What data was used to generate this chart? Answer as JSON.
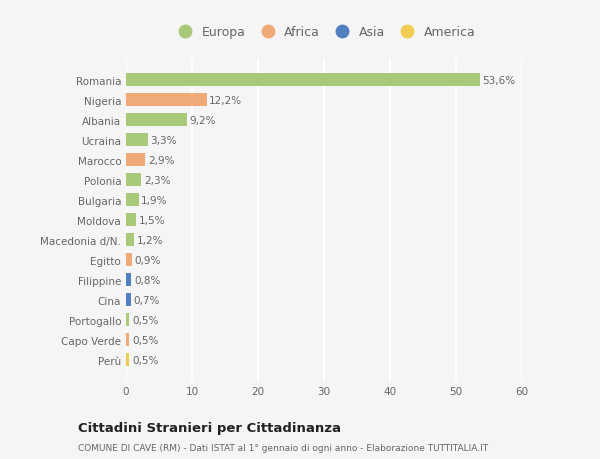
{
  "categories": [
    "Romania",
    "Nigeria",
    "Albania",
    "Ucraina",
    "Marocco",
    "Polonia",
    "Bulgaria",
    "Moldova",
    "Macedonia d/N.",
    "Egitto",
    "Filippine",
    "Cina",
    "Portogallo",
    "Capo Verde",
    "Perù"
  ],
  "values": [
    53.6,
    12.2,
    9.2,
    3.3,
    2.9,
    2.3,
    1.9,
    1.5,
    1.2,
    0.9,
    0.8,
    0.7,
    0.5,
    0.5,
    0.5
  ],
  "labels": [
    "53,6%",
    "12,2%",
    "9,2%",
    "3,3%",
    "2,9%",
    "2,3%",
    "1,9%",
    "1,5%",
    "1,2%",
    "0,9%",
    "0,8%",
    "0,7%",
    "0,5%",
    "0,5%",
    "0,5%"
  ],
  "continents": [
    "Europa",
    "Africa",
    "Europa",
    "Europa",
    "Africa",
    "Europa",
    "Europa",
    "Europa",
    "Europa",
    "Africa",
    "Asia",
    "Asia",
    "Europa",
    "Africa",
    "America"
  ],
  "continent_colors": {
    "Europa": "#a8c87a",
    "Africa": "#f0aa78",
    "Asia": "#5080c0",
    "America": "#f0cc50"
  },
  "legend_entries": [
    "Europa",
    "Africa",
    "Asia",
    "America"
  ],
  "legend_colors": [
    "#a8c87a",
    "#f0aa78",
    "#5080c0",
    "#f0cc50"
  ],
  "xlim": [
    0,
    60
  ],
  "xticks": [
    0,
    10,
    20,
    30,
    40,
    50,
    60
  ],
  "background_color": "#f5f5f5",
  "title_main": "Cittadini Stranieri per Cittadinanza",
  "title_sub": "COMUNE DI CAVE (RM) - Dati ISTAT al 1° gennaio di ogni anno - Elaborazione TUTTITALIA.IT",
  "bar_height": 0.65,
  "grid_color": "#ffffff",
  "label_fontsize": 7.5,
  "tick_fontsize": 7.5,
  "legend_fontsize": 9,
  "text_color": "#666666"
}
